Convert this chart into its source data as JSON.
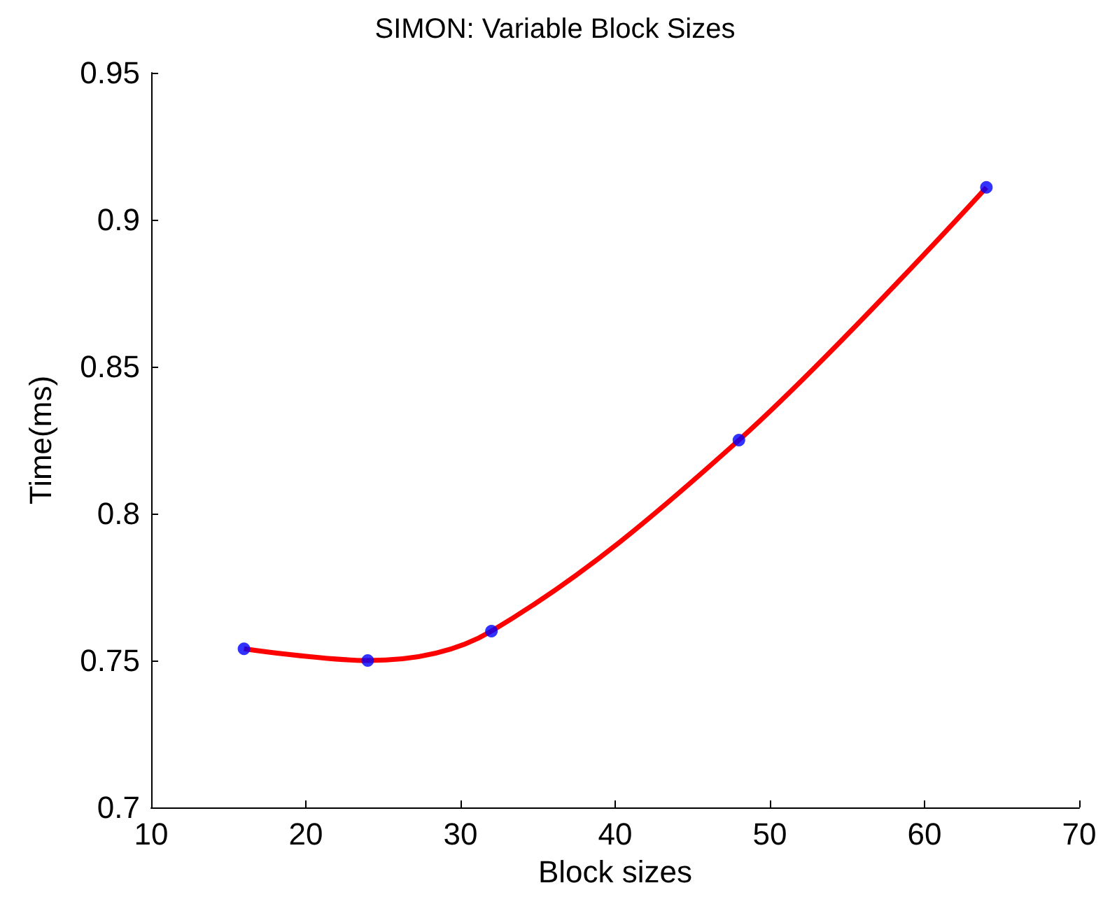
{
  "chart_data": {
    "type": "line",
    "title": "SIMON: Variable Block Sizes",
    "xlabel": "Block sizes",
    "ylabel": "Time(ms)",
    "x": [
      16,
      24,
      32,
      48,
      64
    ],
    "series": [
      {
        "color": "#ff0000",
        "marker": "none",
        "line_style": "solid",
        "values": [
          0.754,
          0.75,
          0.76,
          0.825,
          0.911
        ]
      },
      {
        "type": "scatter",
        "color": "#0000ff",
        "marker": "circle",
        "values": [
          0.754,
          0.75,
          0.76,
          0.825,
          0.911
        ]
      }
    ],
    "xlim": [
      10,
      70
    ],
    "xticks": [
      10,
      20,
      30,
      40,
      50,
      60,
      70
    ],
    "ylim": [
      0.7,
      0.95
    ],
    "yticks": [
      0.7,
      0.75,
      0.8,
      0.85,
      0.9,
      0.95
    ],
    "grid": false
  }
}
